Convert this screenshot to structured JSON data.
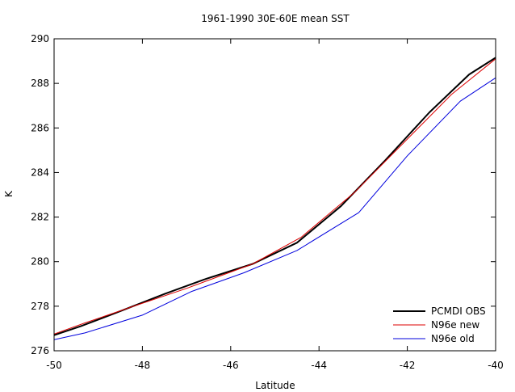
{
  "chart_data": {
    "type": "line",
    "title": "1961-1990 30E-60E mean SST",
    "xlabel": "Latitude",
    "ylabel": "K",
    "xlim": [
      -50,
      -40
    ],
    "ylim": [
      276,
      290
    ],
    "xticks": [
      -50,
      -48,
      -46,
      -44,
      -42,
      -40
    ],
    "yticks": [
      276,
      278,
      280,
      282,
      284,
      286,
      288,
      290
    ],
    "grid": false,
    "legend": "bottom-right",
    "series": [
      {
        "name": "PCMDI OBS",
        "color": "#000000",
        "x": [
          -50.0,
          -49.4,
          -48.6,
          -47.5,
          -46.6,
          -45.5,
          -44.5,
          -43.5,
          -42.5,
          -41.5,
          -40.6,
          -40.0
        ],
        "y": [
          276.7,
          277.1,
          277.7,
          278.55,
          279.2,
          279.9,
          280.85,
          282.5,
          284.55,
          286.7,
          288.4,
          289.15
        ]
      },
      {
        "name": "N96e new",
        "color": "#dd0000",
        "x": [
          -50.0,
          -49.3,
          -48.2,
          -47.0,
          -45.5,
          -44.4,
          -43.2,
          -42.1,
          -41.0,
          -40.0
        ],
        "y": [
          276.75,
          277.25,
          278.0,
          278.8,
          279.9,
          281.1,
          283.1,
          285.3,
          287.5,
          289.1
        ]
      },
      {
        "name": "N96e old",
        "color": "#0000dd",
        "x": [
          -50.0,
          -49.3,
          -48.0,
          -46.9,
          -45.7,
          -44.5,
          -43.1,
          -42.0,
          -40.8,
          -40.0
        ],
        "y": [
          276.5,
          276.8,
          277.6,
          278.65,
          279.5,
          280.5,
          282.2,
          284.75,
          287.2,
          288.25
        ]
      }
    ]
  }
}
